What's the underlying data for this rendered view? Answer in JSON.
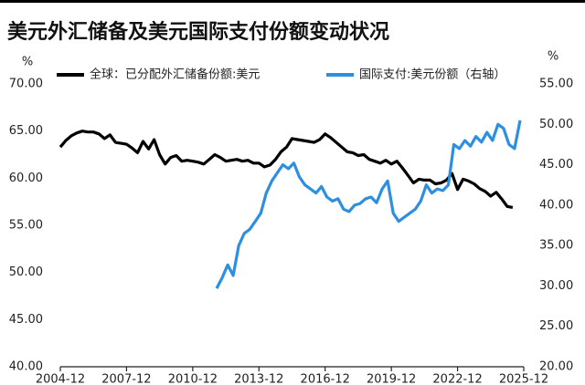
{
  "chart_data": {
    "type": "line",
    "title": "美元外汇储备及美元国际支付份额变动状况",
    "y_label": "%",
    "y2_label": "%",
    "xlim": [
      "2004-12",
      "2025-12"
    ],
    "xticks": [
      "2004-12",
      "2007-12",
      "2010-12",
      "2013-12",
      "2016-12",
      "2019-12",
      "2022-12",
      "2025-12"
    ],
    "ylim": [
      40,
      70
    ],
    "yticks": [
      {
        "value": 40,
        "label": "40.00"
      },
      {
        "value": 45,
        "label": "45.00"
      },
      {
        "value": 50,
        "label": "50.00"
      },
      {
        "value": 55,
        "label": "55.00"
      },
      {
        "value": 60,
        "label": "60.00"
      },
      {
        "value": 65,
        "label": "65.00"
      },
      {
        "value": 70,
        "label": "70.00"
      }
    ],
    "y2lim": [
      20,
      55
    ],
    "y2ticks": [
      {
        "value": 20,
        "label": "20.00"
      },
      {
        "value": 25,
        "label": "25.00"
      },
      {
        "value": 30,
        "label": "30.00"
      },
      {
        "value": 35,
        "label": "35.00"
      },
      {
        "value": 40,
        "label": "40.00"
      },
      {
        "value": 45,
        "label": "45.00"
      },
      {
        "value": 50,
        "label": "50.00"
      },
      {
        "value": 55,
        "label": "55.00"
      }
    ],
    "grid": false,
    "legend": "top",
    "series": [
      {
        "name": "全球：已分配外汇储备份额:美元",
        "color": "#000000",
        "x": [
          "2004-12",
          "2005-03",
          "2005-06",
          "2005-09",
          "2005-12",
          "2006-03",
          "2006-06",
          "2006-09",
          "2006-12",
          "2007-03",
          "2007-06",
          "2007-09",
          "2007-12",
          "2008-03",
          "2008-06",
          "2008-09",
          "2008-12",
          "2009-03",
          "2009-06",
          "2009-09",
          "2009-12",
          "2010-03",
          "2010-06",
          "2010-09",
          "2010-12",
          "2011-03",
          "2011-06",
          "2011-09",
          "2011-12",
          "2012-03",
          "2012-06",
          "2012-09",
          "2012-12",
          "2013-03",
          "2013-06",
          "2013-09",
          "2013-12",
          "2014-03",
          "2014-06",
          "2014-09",
          "2014-12",
          "2015-03",
          "2015-06",
          "2015-09",
          "2015-12",
          "2016-03",
          "2016-06",
          "2016-09",
          "2016-12",
          "2017-03",
          "2017-06",
          "2017-09",
          "2017-12",
          "2018-03",
          "2018-06",
          "2018-09",
          "2018-12",
          "2019-03",
          "2019-06",
          "2019-09",
          "2019-12",
          "2020-03",
          "2020-06",
          "2020-09",
          "2020-12",
          "2021-03",
          "2021-06",
          "2021-09",
          "2021-12",
          "2022-03",
          "2022-06",
          "2022-09",
          "2022-12",
          "2023-03",
          "2023-06",
          "2023-09",
          "2023-12",
          "2024-03",
          "2024-06",
          "2024-09",
          "2024-12",
          "2025-03",
          "2025-06"
        ],
        "values": [
          63.3,
          64.0,
          64.5,
          64.8,
          65.0,
          64.9,
          64.9,
          64.7,
          64.2,
          64.6,
          63.8,
          63.7,
          63.6,
          63.2,
          62.7,
          63.9,
          63.1,
          64.1,
          62.5,
          61.5,
          62.2,
          62.4,
          61.8,
          61.9,
          61.8,
          61.7,
          61.5,
          62.0,
          62.5,
          62.2,
          61.8,
          61.9,
          62.0,
          61.8,
          61.9,
          61.6,
          61.6,
          61.2,
          61.4,
          62.0,
          62.8,
          63.3,
          64.2,
          64.1,
          64.0,
          63.9,
          63.8,
          64.1,
          64.7,
          64.3,
          63.8,
          63.3,
          62.8,
          62.7,
          62.4,
          62.5,
          62.0,
          61.8,
          61.6,
          61.9,
          61.5,
          61.8,
          61.1,
          60.3,
          59.5,
          59.9,
          59.8,
          59.8,
          59.4,
          59.5,
          59.8,
          60.5,
          58.8,
          59.9,
          59.7,
          59.4,
          58.9,
          58.6,
          58.1,
          58.5,
          57.8,
          57.0,
          56.9
        ]
      },
      {
        "name": "国际支付:美元份额（右轴）",
        "color": "#2e8fe0",
        "axis": "y2",
        "x": [
          "2012-01",
          "2012-04",
          "2012-07",
          "2012-10",
          "2013-01",
          "2013-04",
          "2013-07",
          "2013-10",
          "2014-01",
          "2014-04",
          "2014-07",
          "2014-10",
          "2015-01",
          "2015-04",
          "2015-07",
          "2015-10",
          "2016-01",
          "2016-04",
          "2016-07",
          "2016-10",
          "2017-01",
          "2017-04",
          "2017-07",
          "2017-10",
          "2018-01",
          "2018-04",
          "2018-07",
          "2018-10",
          "2019-01",
          "2019-04",
          "2019-07",
          "2019-10",
          "2020-01",
          "2020-04",
          "2020-07",
          "2020-10",
          "2021-01",
          "2021-04",
          "2021-07",
          "2021-10",
          "2022-01",
          "2022-04",
          "2022-07",
          "2022-10",
          "2023-01",
          "2023-04",
          "2023-07",
          "2023-10",
          "2024-01",
          "2024-04",
          "2024-07",
          "2024-10",
          "2025-01",
          "2025-04",
          "2025-07",
          "2025-10"
        ],
        "values": [
          29.7,
          31.0,
          32.6,
          31.3,
          35.0,
          36.5,
          37.0,
          38.0,
          39.0,
          41.5,
          43.0,
          44.0,
          45.0,
          44.5,
          45.2,
          43.5,
          42.5,
          42.0,
          41.5,
          42.3,
          41.0,
          40.5,
          40.8,
          39.5,
          39.2,
          40.0,
          40.2,
          40.8,
          41.0,
          40.3,
          42.0,
          43.0,
          39.0,
          38.0,
          38.5,
          39.0,
          39.5,
          40.5,
          42.5,
          41.5,
          42.0,
          41.8,
          42.5,
          47.5,
          47.0,
          48.0,
          47.3,
          48.5,
          47.8,
          49.0,
          48.0,
          50.0,
          49.5,
          47.5,
          47.0,
          50.5
        ]
      }
    ]
  }
}
